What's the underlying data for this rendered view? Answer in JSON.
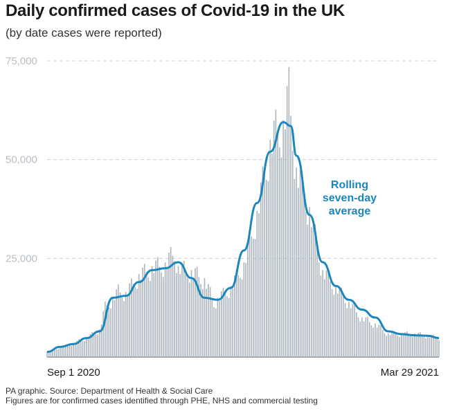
{
  "header": {
    "title": "Daily confirmed cases of Covid-19 in the UK",
    "subtitle": "(by date cases were reported)"
  },
  "footer": {
    "source": "PA graphic. Source: Department of Health & Social Care",
    "note": "Figures are for confirmed cases identified through PHE, NHS and commercial testing"
  },
  "colors": {
    "bars": "#aeb7bf",
    "average_line": "#1b86bd",
    "grid": "#c8cdd2",
    "annotation": "#1b86bd"
  },
  "chart_data": {
    "type": "bar",
    "x_start": "2020-09-01",
    "x_end": "2021-03-29",
    "x_tick_labels": [
      "Sep 1 2020",
      "Mar 29 2021"
    ],
    "ylim": [
      0,
      75000
    ],
    "yticks": [
      25000,
      50000,
      75000
    ],
    "ytick_labels": [
      "25,000",
      "50,000",
      "75,000"
    ],
    "grid": true,
    "annotation": [
      "Rolling",
      "seven-day",
      "average"
    ],
    "series": [
      {
        "kind": "bars",
        "x": [
          "2020-09-01",
          "2020-09-08",
          "2020-09-15",
          "2020-09-22",
          "2020-09-29",
          "2020-10-02",
          "2020-10-06",
          "2020-10-09",
          "2020-10-13",
          "2020-10-20",
          "2020-10-27",
          "2020-11-03",
          "2020-11-08",
          "2020-11-10",
          "2020-11-17",
          "2020-11-24",
          "2020-11-29",
          "2020-12-01",
          "2020-12-08",
          "2020-12-15",
          "2020-12-22",
          "2020-12-29",
          "2021-01-01",
          "2021-01-05",
          "2021-01-08",
          "2021-01-12",
          "2021-01-19",
          "2021-01-26",
          "2021-02-02",
          "2021-02-09",
          "2021-02-16",
          "2021-02-23",
          "2021-03-02",
          "2021-03-09",
          "2021-03-16",
          "2021-03-23",
          "2021-03-29"
        ],
        "values": [
          1300,
          2500,
          3500,
          5000,
          7000,
          13000,
          15000,
          17000,
          16500,
          21000,
          23000,
          24000,
          27000,
          23000,
          22000,
          20000,
          14000,
          15000,
          18000,
          24000,
          37000,
          55000,
          58000,
          60000,
          68000,
          48000,
          38000,
          22000,
          18000,
          14000,
          10000,
          8500,
          6000,
          6000,
          6000,
          5500,
          5000
        ]
      },
      {
        "kind": "line",
        "name": "Rolling seven-day average",
        "x": [
          "2020-09-01",
          "2020-09-08",
          "2020-09-15",
          "2020-09-22",
          "2020-09-29",
          "2020-10-06",
          "2020-10-13",
          "2020-10-20",
          "2020-10-27",
          "2020-11-03",
          "2020-11-10",
          "2020-11-17",
          "2020-11-24",
          "2020-12-01",
          "2020-12-08",
          "2020-12-15",
          "2020-12-22",
          "2020-12-29",
          "2021-01-05",
          "2021-01-09",
          "2021-01-12",
          "2021-01-19",
          "2021-01-26",
          "2021-02-02",
          "2021-02-09",
          "2021-02-16",
          "2021-02-23",
          "2021-03-02",
          "2021-03-09",
          "2021-03-16",
          "2021-03-23",
          "2021-03-29"
        ],
        "values": [
          1300,
          2600,
          3300,
          4800,
          6500,
          15000,
          15500,
          19000,
          22000,
          22500,
          24000,
          20000,
          15000,
          14500,
          17500,
          27000,
          39000,
          52000,
          59500,
          58500,
          51000,
          36000,
          24000,
          18000,
          14500,
          12000,
          10000,
          6500,
          5800,
          5500,
          5400,
          4800
        ]
      }
    ]
  }
}
